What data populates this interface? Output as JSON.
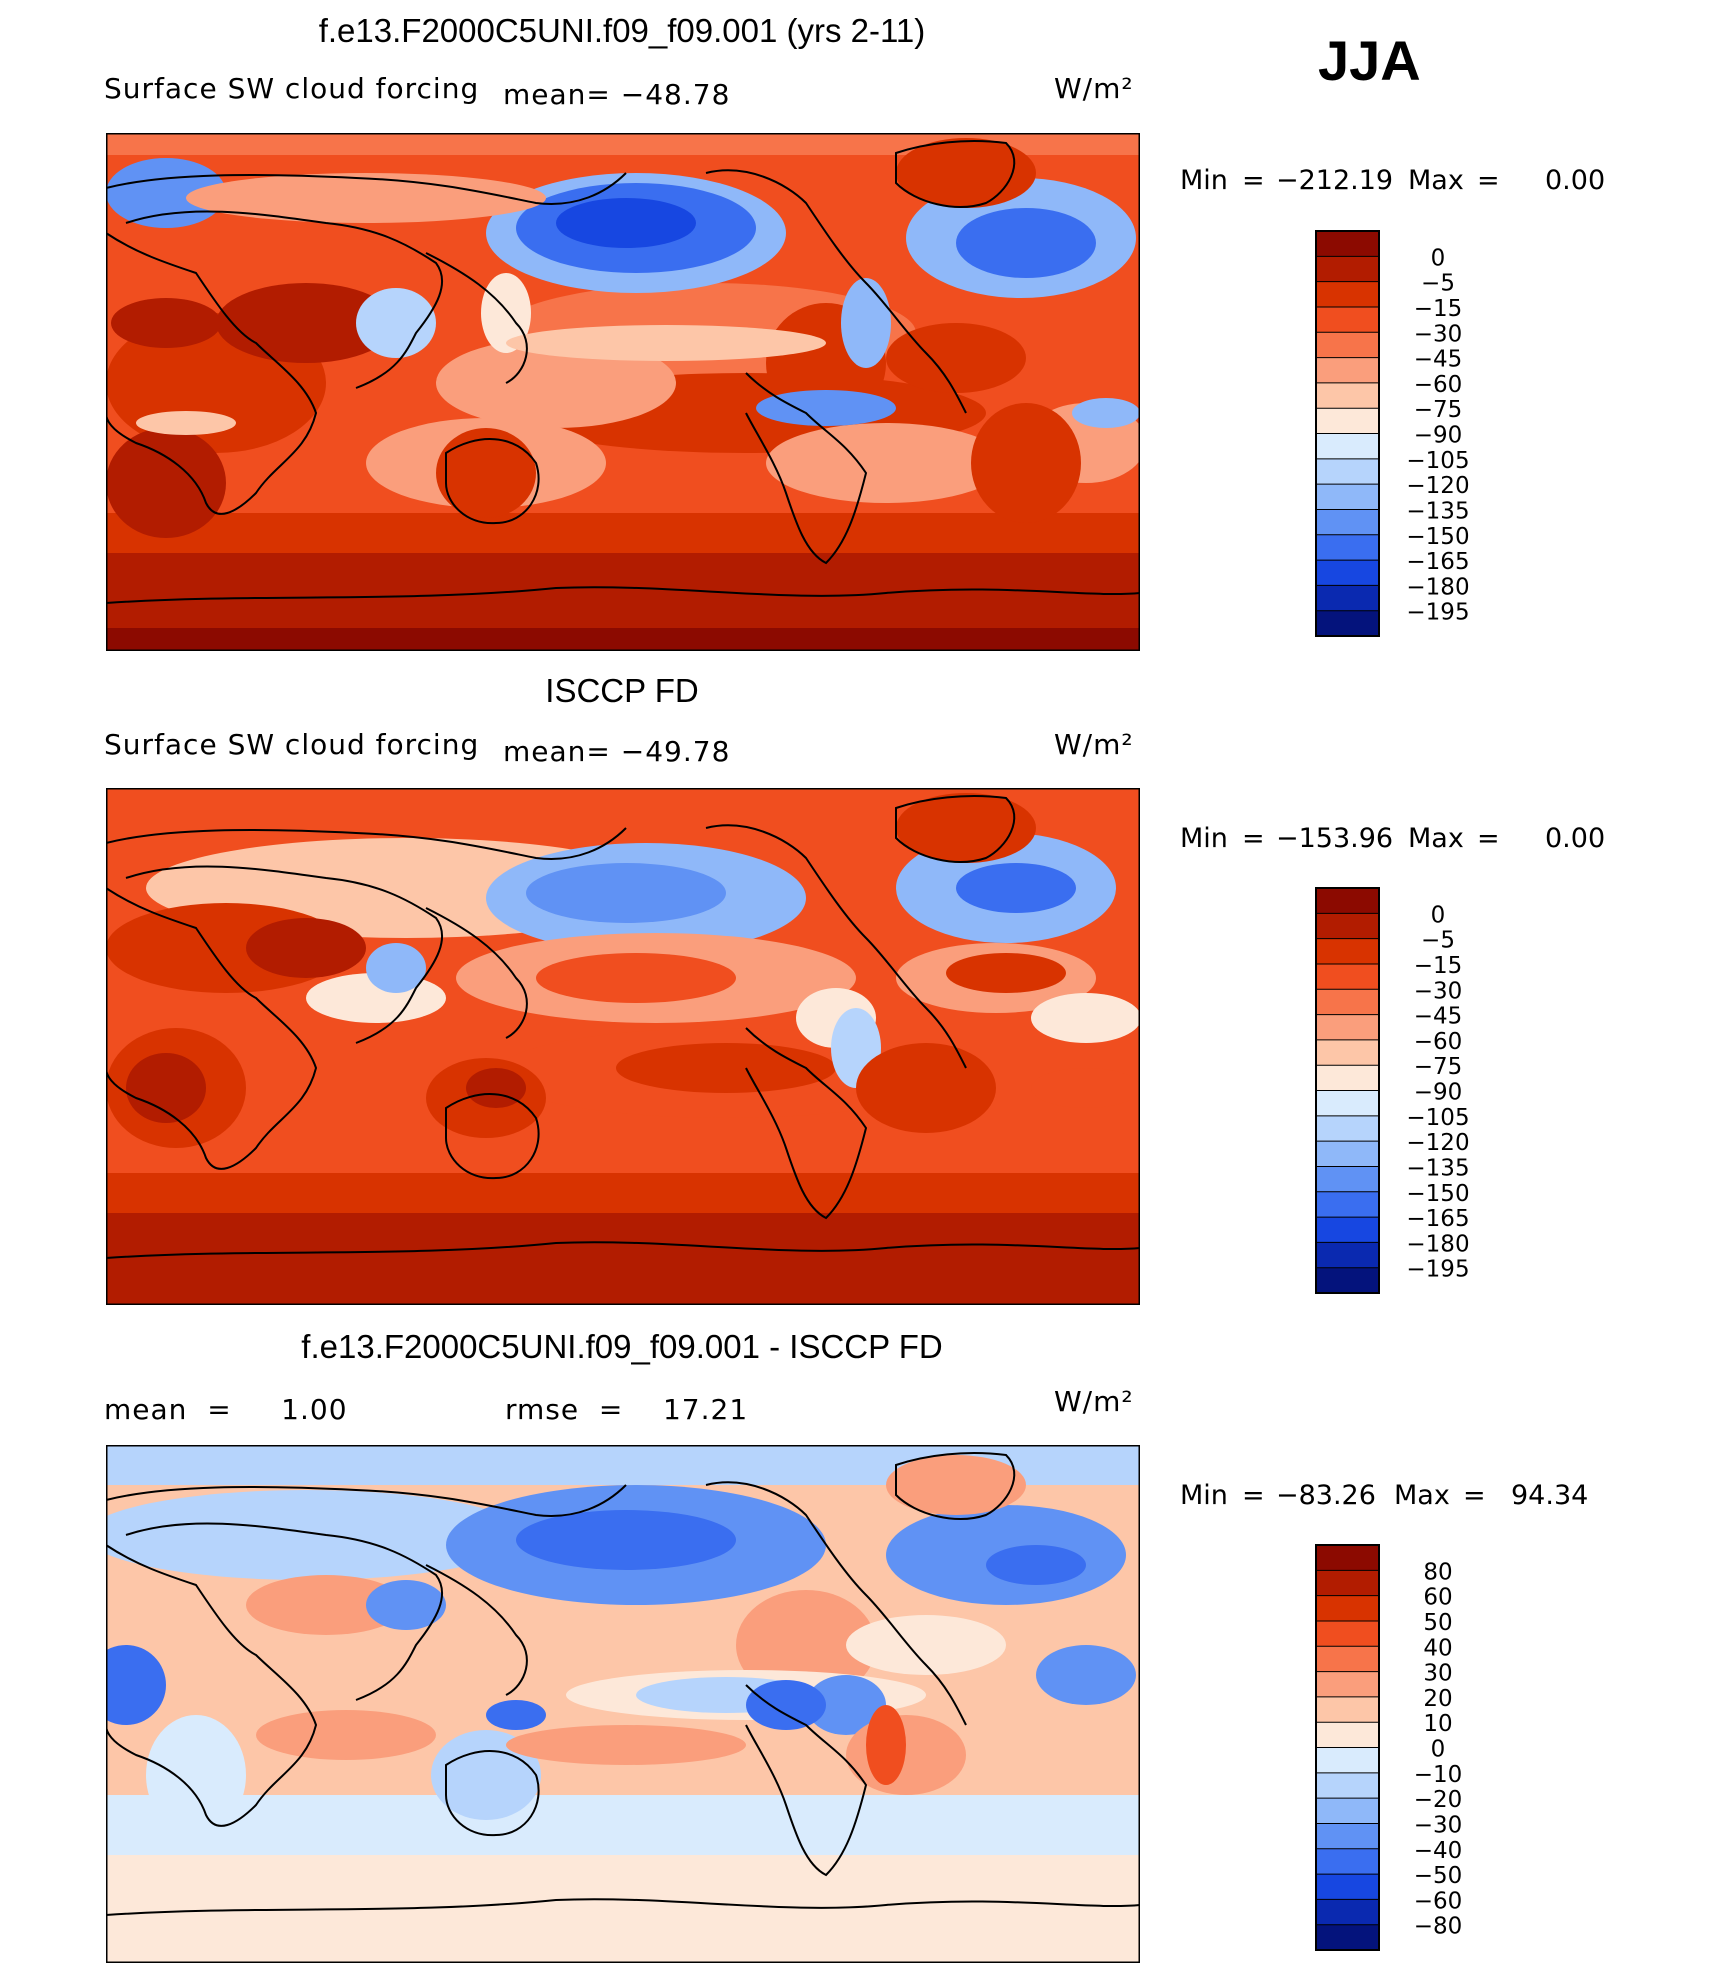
{
  "season_label": "JJA",
  "panels": [
    {
      "title": "f.e13.F2000C5UNI.f09_f09.001 (yrs 2-11)",
      "left_label": "Surface SW cloud forcing",
      "mid_label": "mean=  −48.78",
      "units": "W/m²",
      "min_label": "Min",
      "min_value": "−212.19",
      "max_label": "Max",
      "max_value": "0.00",
      "colorbar": {
        "labels": [
          "0",
          "−5",
          "−15",
          "−30",
          "−45",
          "−60",
          "−75",
          "−90",
          "−105",
          "−120",
          "−135",
          "−150",
          "−165",
          "−180",
          "−195"
        ],
        "colors": [
          "#8c0a00",
          "#b21c00",
          "#d83300",
          "#f04e1f",
          "#f7744a",
          "#fa9e7c",
          "#fdc6a8",
          "#fde8d9",
          "#d9ebfd",
          "#b6d4fc",
          "#8fb8f9",
          "#6092f4",
          "#3a6ef0",
          "#1747e1",
          "#0a29b0",
          "#04137c"
        ]
      }
    },
    {
      "title": "ISCCP FD",
      "left_label": "Surface SW cloud forcing",
      "mid_label": "mean=  −49.78",
      "units": "W/m²",
      "min_label": "Min",
      "min_value": "−153.96",
      "max_label": "Max",
      "max_value": "0.00",
      "colorbar": {
        "labels": [
          "0",
          "−5",
          "−15",
          "−30",
          "−45",
          "−60",
          "−75",
          "−90",
          "−105",
          "−120",
          "−135",
          "−150",
          "−165",
          "−180",
          "−195"
        ],
        "colors": [
          "#8c0a00",
          "#b21c00",
          "#d83300",
          "#f04e1f",
          "#f7744a",
          "#fa9e7c",
          "#fdc6a8",
          "#fde8d9",
          "#d9ebfd",
          "#b6d4fc",
          "#8fb8f9",
          "#6092f4",
          "#3a6ef0",
          "#1747e1",
          "#0a29b0",
          "#04137c"
        ]
      }
    },
    {
      "title": "f.e13.F2000C5UNI.f09_f09.001 - ISCCP FD",
      "left_label": "mean  =     1.00",
      "mid_label": "rmse  =    17.21",
      "units": "W/m²",
      "min_label": "Min",
      "min_value": "−83.26",
      "max_label": "Max",
      "max_value": "94.34",
      "colorbar": {
        "labels": [
          "80",
          "60",
          "50",
          "40",
          "30",
          "20",
          "10",
          "0",
          "−10",
          "−20",
          "−30",
          "−40",
          "−50",
          "−60",
          "−80"
        ],
        "colors": [
          "#8c0a00",
          "#b21c00",
          "#d83300",
          "#f04e1f",
          "#f7744a",
          "#fa9e7c",
          "#fdc6a8",
          "#fde8d9",
          "#d9ebfd",
          "#b6d4fc",
          "#8fb8f9",
          "#6092f4",
          "#3a6ef0",
          "#1747e1",
          "#0a29b0",
          "#04137c"
        ]
      }
    }
  ],
  "chart_data": {
    "type": "heatmap",
    "season": "JJA",
    "units": "W/m²",
    "fields": [
      {
        "title": "f.e13.F2000C5UNI.f09_f09.001 (yrs 2-11)",
        "variable": "Surface SW cloud forcing",
        "mean": -48.78,
        "min": -212.19,
        "max": 0.0,
        "levels": [
          0,
          -5,
          -15,
          -30,
          -45,
          -60,
          -75,
          -90,
          -105,
          -120,
          -135,
          -150,
          -165,
          -180,
          -195
        ]
      },
      {
        "title": "ISCCP FD",
        "variable": "Surface SW cloud forcing",
        "mean": -49.78,
        "min": -153.96,
        "max": 0.0,
        "levels": [
          0,
          -5,
          -15,
          -30,
          -45,
          -60,
          -75,
          -90,
          -105,
          -120,
          -135,
          -150,
          -165,
          -180,
          -195
        ]
      },
      {
        "title": "f.e13.F2000C5UNI.f09_f09.001 - ISCCP FD",
        "mean": 1.0,
        "rmse": 17.21,
        "min": -83.26,
        "max": 94.34,
        "levels": [
          80,
          60,
          50,
          40,
          30,
          20,
          10,
          0,
          -10,
          -20,
          -30,
          -40,
          -50,
          -60,
          -80
        ]
      }
    ]
  }
}
